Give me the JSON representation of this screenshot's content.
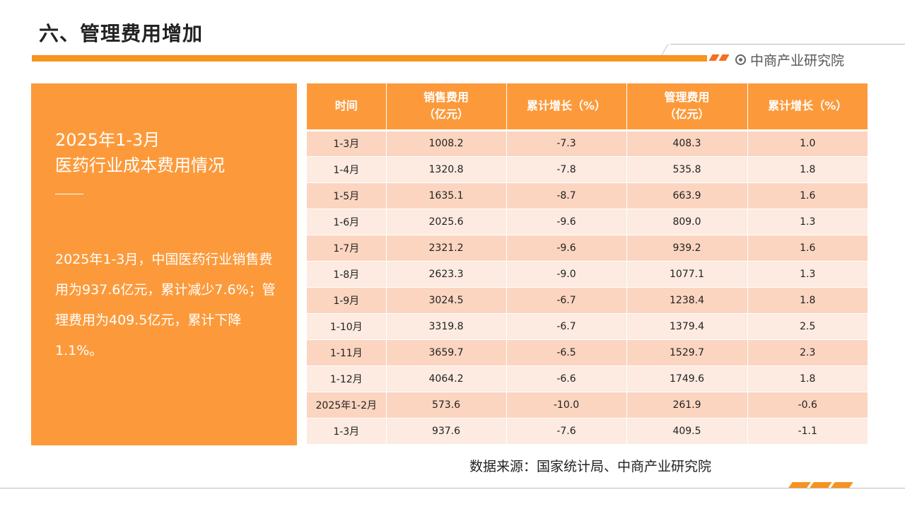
{
  "header": {
    "title": "六、管理费用增加",
    "logo_text": "中商产业研究院"
  },
  "panel": {
    "heading_line1": "2025年1-3月",
    "heading_line2": "医药行业成本费用情况",
    "body": "2025年1-3月，中国医药行业销售费用为937.6亿元，累计减少7.6%；管理费用为409.5亿元，累计下降1.1%。"
  },
  "table": {
    "headers": [
      "时间",
      "销售费用\n（亿元）",
      "累计增长（%）",
      "管理费用\n（亿元）",
      "累计增长（%）"
    ],
    "rows": [
      [
        "1-3月",
        "1008.2",
        "-7.3",
        "408.3",
        "1.0"
      ],
      [
        "1-4月",
        "1320.8",
        "-7.8",
        "535.8",
        "1.8"
      ],
      [
        "1-5月",
        "1635.1",
        "-8.7",
        "663.9",
        "1.6"
      ],
      [
        "1-6月",
        "2025.6",
        "-9.6",
        "809.0",
        "1.3"
      ],
      [
        "1-7月",
        "2321.2",
        "-9.6",
        "939.2",
        "1.6"
      ],
      [
        "1-8月",
        "2623.3",
        "-9.0",
        "1077.1",
        "1.3"
      ],
      [
        "1-9月",
        "3024.5",
        "-6.7",
        "1238.4",
        "1.8"
      ],
      [
        "1-10月",
        "3319.8",
        "-6.7",
        "1379.4",
        "2.5"
      ],
      [
        "1-11月",
        "3659.7",
        "-6.5",
        "1529.7",
        "2.3"
      ],
      [
        "1-12月",
        "4064.2",
        "-6.6",
        "1749.6",
        "1.8"
      ],
      [
        "2025年1-2月",
        "573.6",
        "-10.0",
        "261.9",
        "-0.6"
      ],
      [
        "1-3月",
        "937.6",
        "-7.6",
        "409.5",
        "-1.1"
      ]
    ]
  },
  "footer": {
    "source": "数据来源：国家统计局、中商产业研究院"
  },
  "colors": {
    "accent": "#f7931e",
    "panel": "#fc9a3b",
    "row_odd": "#fbd5c0",
    "row_even": "#fdeae0"
  }
}
